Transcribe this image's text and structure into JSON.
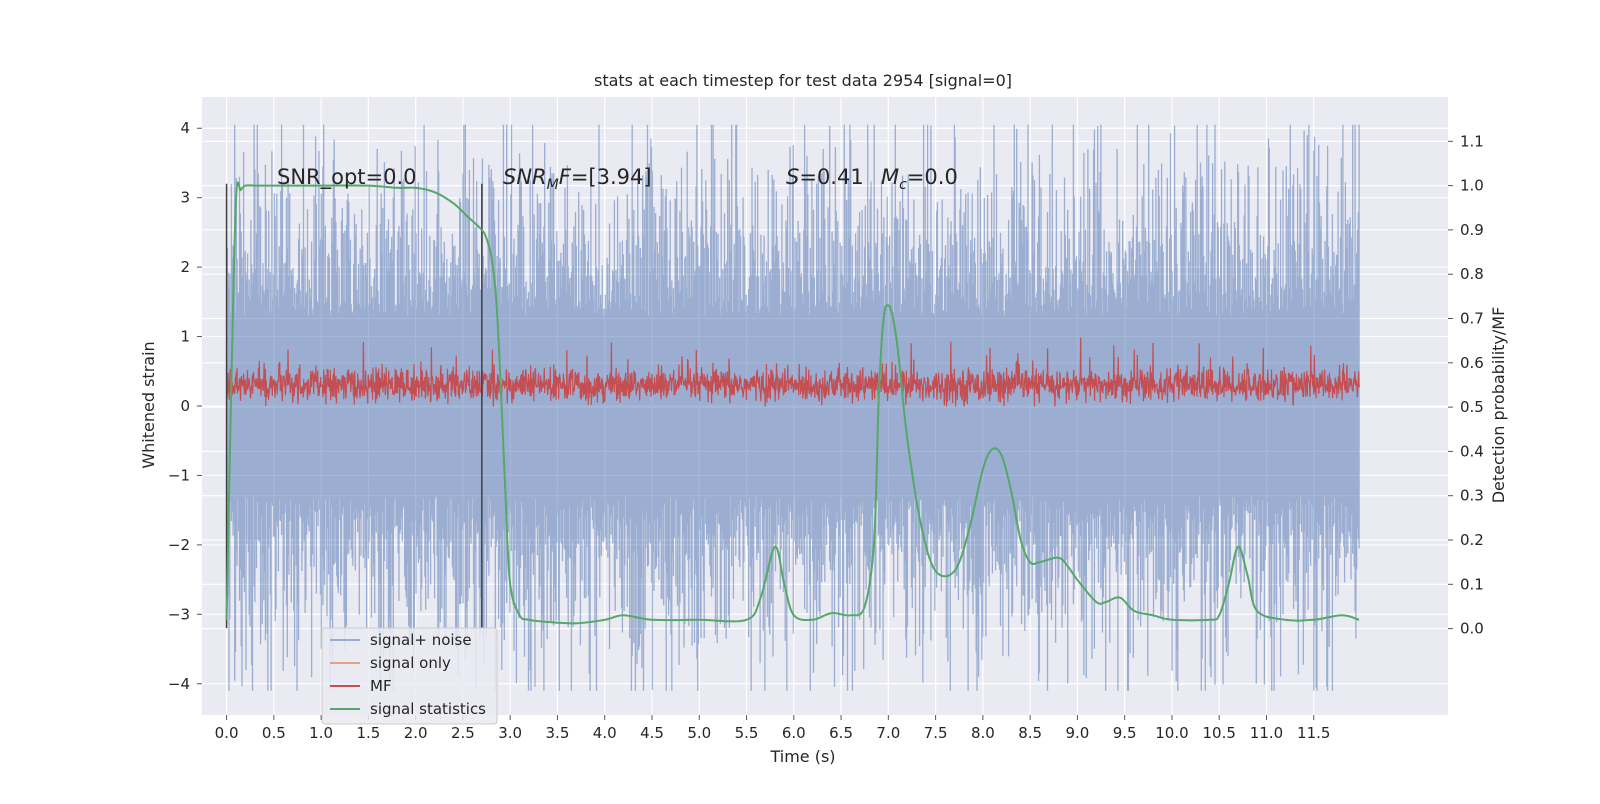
{
  "chart_data": {
    "type": "line",
    "title": "stats at each timestep for test data 2954 [signal=0]",
    "xlabel": "Time (s)",
    "ylabel_left": "Whitened strain",
    "ylabel_right": "Detection probability/MF",
    "x_range": [
      -0.26,
      12.92
    ],
    "y_left_range": [
      -4.45,
      4.45
    ],
    "y_right_range": [
      -0.195,
      1.2
    ],
    "x_ticks": [
      "0.0",
      "0.5",
      "1.0",
      "1.5",
      "2.0",
      "2.5",
      "3.0",
      "3.5",
      "4.0",
      "4.5",
      "5.0",
      "5.5",
      "6.0",
      "6.5",
      "7.0",
      "7.5",
      "8.0",
      "8.5",
      "9.0",
      "9.5",
      "10.0",
      "10.5",
      "11.0",
      "11.5"
    ],
    "y_left_ticks": [
      "−4",
      "−3",
      "−2",
      "−1",
      "0",
      "1",
      "2",
      "3",
      "4"
    ],
    "y_right_ticks": [
      "0.0",
      "0.1",
      "0.2",
      "0.3",
      "0.4",
      "0.5",
      "0.6",
      "0.7",
      "0.8",
      "0.9",
      "1.0",
      "1.1"
    ],
    "grid": true,
    "legend_placement": "lower-left",
    "colors": {
      "background": "#eaeaf2",
      "grid": "#ffffff",
      "signal_noise": "#4c72b0",
      "signal_only": "#dd8452",
      "mf": "#c44e52",
      "signal_statistics": "#55a868",
      "vline": "#404040"
    },
    "annotations": [
      {
        "text": "SNR_opt=0.0"
      },
      {
        "text": "=[3.94]",
        "prefix": "SNR",
        "sub": "M",
        "suffix": "F"
      },
      {
        "text": "=0.41",
        "prefix": "S"
      },
      {
        "text": "=0.0",
        "prefix": "M",
        "sub": "c"
      }
    ],
    "vertical_lines_x": [
      0.0,
      2.7
    ],
    "vertical_lines_y_range": [
      -3.2,
      3.2
    ],
    "series": [
      {
        "name": "signal+ noise",
        "description": "whitened strain noise, roughly ±2.5 with spikes to ±4",
        "x_range": [
          0.0,
          11.98
        ],
        "amplitude": 1.0
      },
      {
        "name": "signal only",
        "values": []
      },
      {
        "name": "MF",
        "description": "matched filter output, roughly 0 to 0.6 (left axis)",
        "x_range": [
          0.0,
          11.98
        ]
      },
      {
        "name": "signal statistics",
        "x": [
          0.0,
          0.05,
          0.1,
          0.15,
          0.2,
          0.3,
          0.5,
          1.0,
          1.5,
          1.8,
          2.0,
          2.2,
          2.4,
          2.55,
          2.7,
          2.75,
          2.8,
          2.85,
          2.9,
          2.95,
          3.0,
          3.1,
          3.2,
          3.4,
          3.7,
          4.0,
          4.2,
          4.5,
          5.0,
          5.5,
          5.65,
          5.8,
          5.9,
          6.0,
          6.2,
          6.4,
          6.6,
          6.75,
          6.85,
          6.9,
          6.95,
          7.0,
          7.05,
          7.1,
          7.2,
          7.35,
          7.5,
          7.7,
          7.85,
          8.0,
          8.1,
          8.2,
          8.3,
          8.4,
          8.5,
          8.6,
          8.8,
          8.9,
          9.0,
          9.2,
          9.3,
          9.45,
          9.6,
          9.8,
          10.0,
          10.4,
          10.5,
          10.6,
          10.7,
          10.8,
          10.9,
          11.2,
          11.5,
          11.8,
          11.98
        ],
        "values": [
          0.02,
          0.55,
          0.97,
          0.99,
          1.0,
          1.0,
          1.0,
          1.0,
          1.0,
          0.995,
          0.995,
          0.985,
          0.96,
          0.93,
          0.9,
          0.88,
          0.84,
          0.75,
          0.55,
          0.3,
          0.1,
          0.03,
          0.02,
          0.015,
          0.012,
          0.02,
          0.03,
          0.02,
          0.02,
          0.02,
          0.07,
          0.185,
          0.1,
          0.03,
          0.02,
          0.035,
          0.03,
          0.05,
          0.2,
          0.53,
          0.7,
          0.73,
          0.7,
          0.63,
          0.43,
          0.23,
          0.13,
          0.13,
          0.22,
          0.36,
          0.405,
          0.39,
          0.31,
          0.2,
          0.15,
          0.15,
          0.16,
          0.14,
          0.11,
          0.06,
          0.06,
          0.07,
          0.04,
          0.03,
          0.02,
          0.02,
          0.03,
          0.1,
          0.185,
          0.12,
          0.04,
          0.02,
          0.02,
          0.03,
          0.02
        ]
      }
    ]
  }
}
